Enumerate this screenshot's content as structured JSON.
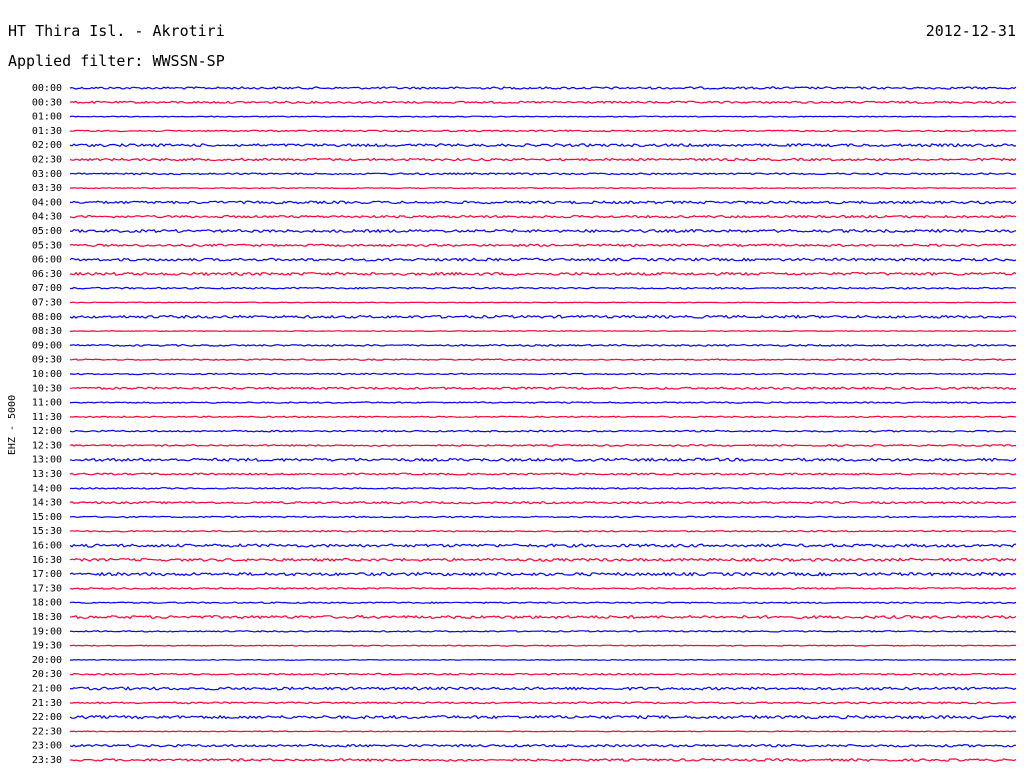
{
  "header": {
    "station": "HT Thira Isl. - Akrotiri",
    "date": "2012-12-31",
    "filter": "Applied filter: WWSSN-SP"
  },
  "axis_label": "EHZ - 5000",
  "trace_colors": [
    "#0000ff",
    "#ff0033"
  ],
  "rows": [
    "00:00",
    "00:30",
    "01:00",
    "01:30",
    "02:00",
    "02:30",
    "03:00",
    "03:30",
    "04:00",
    "04:30",
    "05:00",
    "05:30",
    "06:00",
    "06:30",
    "07:00",
    "07:30",
    "08:00",
    "08:30",
    "09:00",
    "09:30",
    "10:00",
    "10:30",
    "11:00",
    "11:30",
    "12:00",
    "12:30",
    "13:00",
    "13:30",
    "14:00",
    "14:30",
    "15:00",
    "15:30",
    "16:00",
    "16:30",
    "17:00",
    "17:30",
    "18:00",
    "18:30",
    "19:00",
    "19:30",
    "20:00",
    "20:30",
    "21:00",
    "21:30",
    "22:00",
    "22:30",
    "23:00",
    "23:30"
  ]
}
